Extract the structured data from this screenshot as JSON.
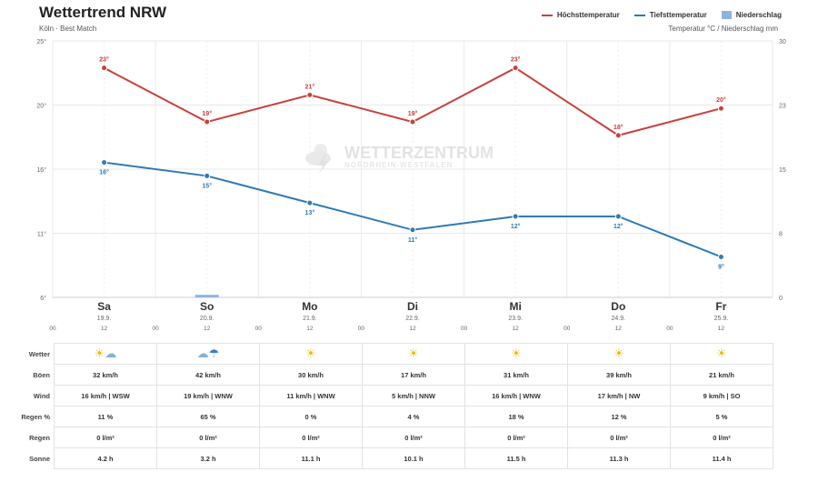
{
  "header": {
    "title": "Wettertrend NRW",
    "subtitle": "Köln · Best Match",
    "unit_note": "Temperatur °C / Niederschlag mm"
  },
  "legend": [
    {
      "label": "Höchsttemperatur",
      "color": "#c8413b",
      "kind": "line"
    },
    {
      "label": "Tiefsttemperatur",
      "color": "#2f7ab5",
      "kind": "line"
    },
    {
      "label": "Niederschlag",
      "color": "#8db4e0",
      "kind": "box"
    }
  ],
  "watermark": {
    "name": "WETTERZENTRUM",
    "region": "NORDRHEIN-WESTFALEN"
  },
  "chart_data": {
    "type": "line",
    "days": [
      "Sa",
      "So",
      "Mo",
      "Di",
      "Mi",
      "Do",
      "Fr"
    ],
    "dates": [
      "19.9.",
      "20.9.",
      "21.9.",
      "22.9.",
      "23.9.",
      "24.9.",
      "25.9."
    ],
    "hour_ticks": [
      "00",
      "12"
    ],
    "series": [
      {
        "name": "Höchsttemperatur",
        "color": "#c8413b",
        "values": [
          23,
          19,
          21,
          19,
          23,
          18,
          20
        ],
        "labels": [
          "23°",
          "19°",
          "21°",
          "19°",
          "23°",
          "18°",
          "20°"
        ]
      },
      {
        "name": "Tiefsttemperatur",
        "color": "#2f7ab5",
        "values": [
          16,
          15,
          13,
          11,
          12,
          12,
          9
        ],
        "labels": [
          "16°",
          "15°",
          "13°",
          "11°",
          "12°",
          "12°",
          "9°"
        ]
      },
      {
        "name": "Niederschlag",
        "color": "#8db4e0",
        "values": [
          0,
          0.3,
          0,
          0,
          0,
          0,
          0
        ]
      }
    ],
    "y_left": {
      "min": 6,
      "max": 25,
      "ticks": [
        "25°",
        "20°",
        "16°",
        "11°",
        "6°"
      ]
    },
    "y_right": {
      "min": 0,
      "max": 30,
      "ticks": [
        "30",
        "23",
        "15",
        "8",
        "0"
      ]
    },
    "grid": true,
    "legend_position": "top-right"
  },
  "table": {
    "rows": [
      {
        "label": "Wetter",
        "type": "icon",
        "cells": [
          "sun-cloud-icon",
          "rain-cloud-icon",
          "sun-icon",
          "sun-icon",
          "sun-icon",
          "sun-icon",
          "sun-icon"
        ]
      },
      {
        "label": "Böen",
        "cells": [
          "32 km/h",
          "42 km/h",
          "30 km/h",
          "17 km/h",
          "31 km/h",
          "39 km/h",
          "21 km/h"
        ]
      },
      {
        "label": "Wind",
        "cells": [
          "16 km/h | WSW",
          "19 km/h | WNW",
          "11 km/h | WNW",
          "5 km/h | NNW",
          "16 km/h | WNW",
          "17 km/h | NW",
          "9 km/h | SO"
        ]
      },
      {
        "label": "Regen %",
        "cells": [
          "11 %",
          "65 %",
          "0 %",
          "4 %",
          "18 %",
          "12 %",
          "5 %"
        ]
      },
      {
        "label": "Regen",
        "cells": [
          "0 l/m²",
          "0 l/m²",
          "0 l/m²",
          "0 l/m²",
          "0 l/m²",
          "0 l/m²",
          "0 l/m²"
        ]
      },
      {
        "label": "Sonne",
        "cells": [
          "4.2 h",
          "3.2 h",
          "11.1 h",
          "10.1 h",
          "11.5 h",
          "11.3 h",
          "11.4 h"
        ]
      }
    ]
  }
}
